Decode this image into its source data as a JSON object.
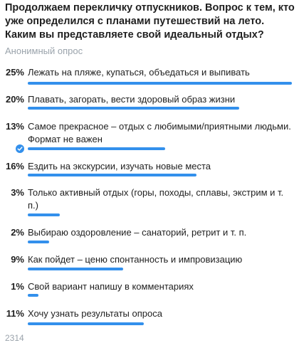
{
  "poll": {
    "question": "Продолжаем перекличку отпускников. Вопрос к тем, кто уже определился с планами путешествий на лето. Каким вы представляете свой идеальный отдых?",
    "type_label": "Анонимный опрос",
    "bar_color": "#3390ec",
    "options": [
      {
        "percent": "25%",
        "value": 25,
        "text": "Лежать на пляже, купаться, объедаться и выпивать",
        "selected": false
      },
      {
        "percent": "20%",
        "value": 20,
        "text": "Плавать, загорать, вести здоровый образ жизни",
        "selected": false
      },
      {
        "percent": "13%",
        "value": 13,
        "text": "Самое прекрасное – отдых с любимыми/приятными людьми. Формат не важен",
        "selected": true
      },
      {
        "percent": "16%",
        "value": 16,
        "text": "Ездить на экскурсии, изучать новые места",
        "selected": false
      },
      {
        "percent": "3%",
        "value": 3,
        "text": "Только активный отдых (горы, походы, сплавы, экстрим и т. п.)",
        "selected": false
      },
      {
        "percent": "2%",
        "value": 2,
        "text": "Выбираю оздоровление – санаторий, ретрит и т. п.",
        "selected": false
      },
      {
        "percent": "9%",
        "value": 9,
        "text": "Как пойдет – ценю спонтанность и импровизацию",
        "selected": false
      },
      {
        "percent": "1%",
        "value": 1,
        "text": "Свой вариант напишу в комментариях",
        "selected": false
      },
      {
        "percent": "11%",
        "value": 11,
        "text": "Хочу узнать результаты опроса",
        "selected": false
      }
    ],
    "votes_label": "2314",
    "selected_icon": "check-icon"
  }
}
